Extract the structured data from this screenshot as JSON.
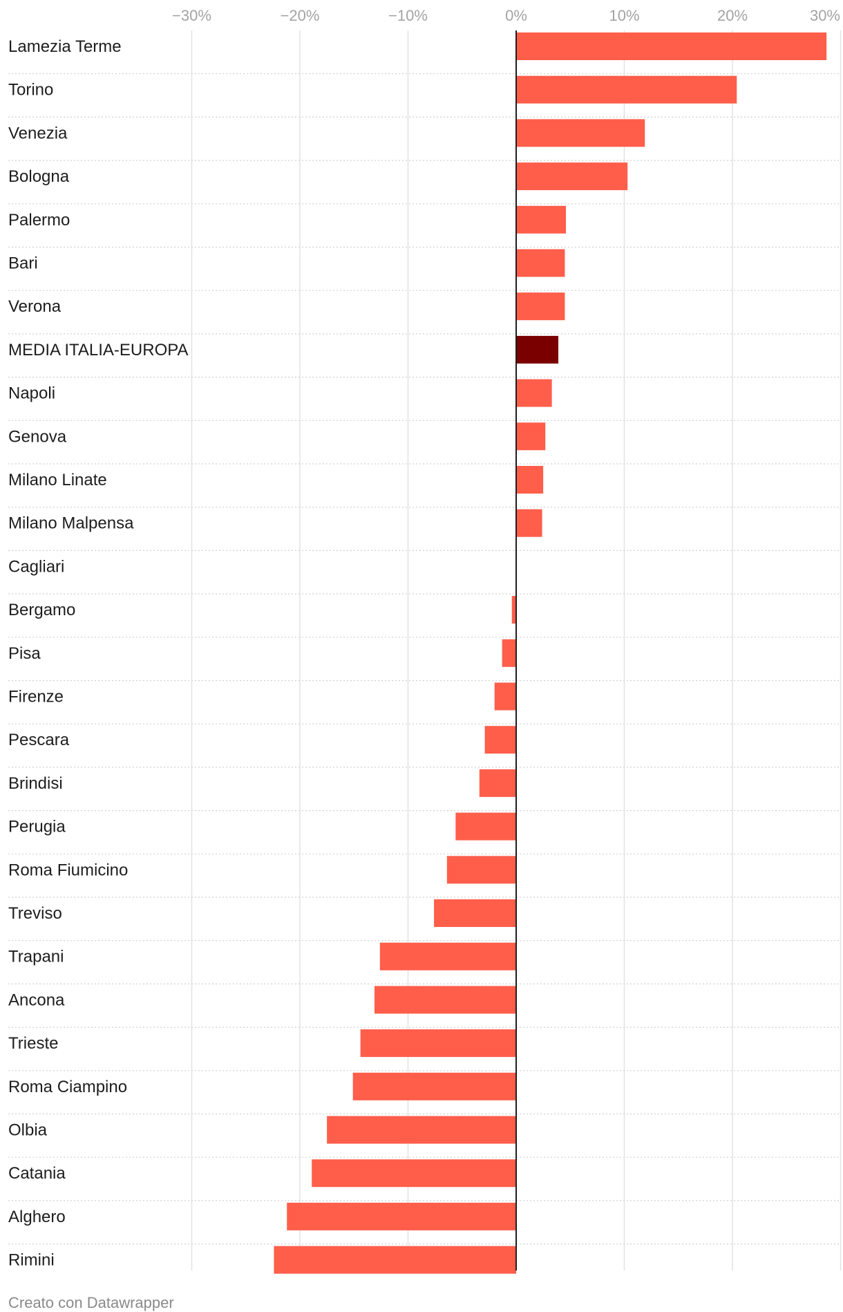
{
  "chart_data": {
    "type": "bar",
    "orientation": "horizontal",
    "categories": [
      "Lamezia Terme",
      "Torino",
      "Venezia",
      "Bologna",
      "Palermo",
      "Bari",
      "Verona",
      "MEDIA ITALIA-EUROPA",
      "Napoli",
      "Genova",
      "Milano Linate",
      "Milano Malpensa",
      "Cagliari",
      "Bergamo",
      "Pisa",
      "Firenze",
      "Pescara",
      "Brindisi",
      "Perugia",
      "Roma Fiumicino",
      "Treviso",
      "Trapani",
      "Ancona",
      "Trieste",
      "Roma Ciampino",
      "Olbia",
      "Catania",
      "Alghero",
      "Rimini"
    ],
    "values": [
      28.7,
      20.4,
      11.9,
      10.3,
      4.6,
      4.5,
      4.5,
      3.9,
      3.3,
      2.7,
      2.5,
      2.4,
      0.0,
      -0.4,
      -1.3,
      -2.0,
      -2.9,
      -3.4,
      -5.6,
      -6.4,
      -7.6,
      -12.6,
      -13.1,
      -14.4,
      -15.1,
      -17.5,
      -18.9,
      -21.2,
      -22.4
    ],
    "highlight": "MEDIA ITALIA-EUROPA",
    "xlim": [
      -30,
      30
    ],
    "ticks": [
      -30,
      -20,
      -10,
      0,
      10,
      20,
      30
    ],
    "tick_labels": [
      "−30%",
      "−20%",
      "−10%",
      "0%",
      "10%",
      "20%",
      "30%"
    ],
    "colors": {
      "bar": "#ff5e4b",
      "highlight": "#7a0000",
      "grid": "#e2e2e2",
      "zero": "#1d1d1d",
      "separator": "#d0d0d0"
    },
    "credit": "Creato con Datawrapper"
  }
}
